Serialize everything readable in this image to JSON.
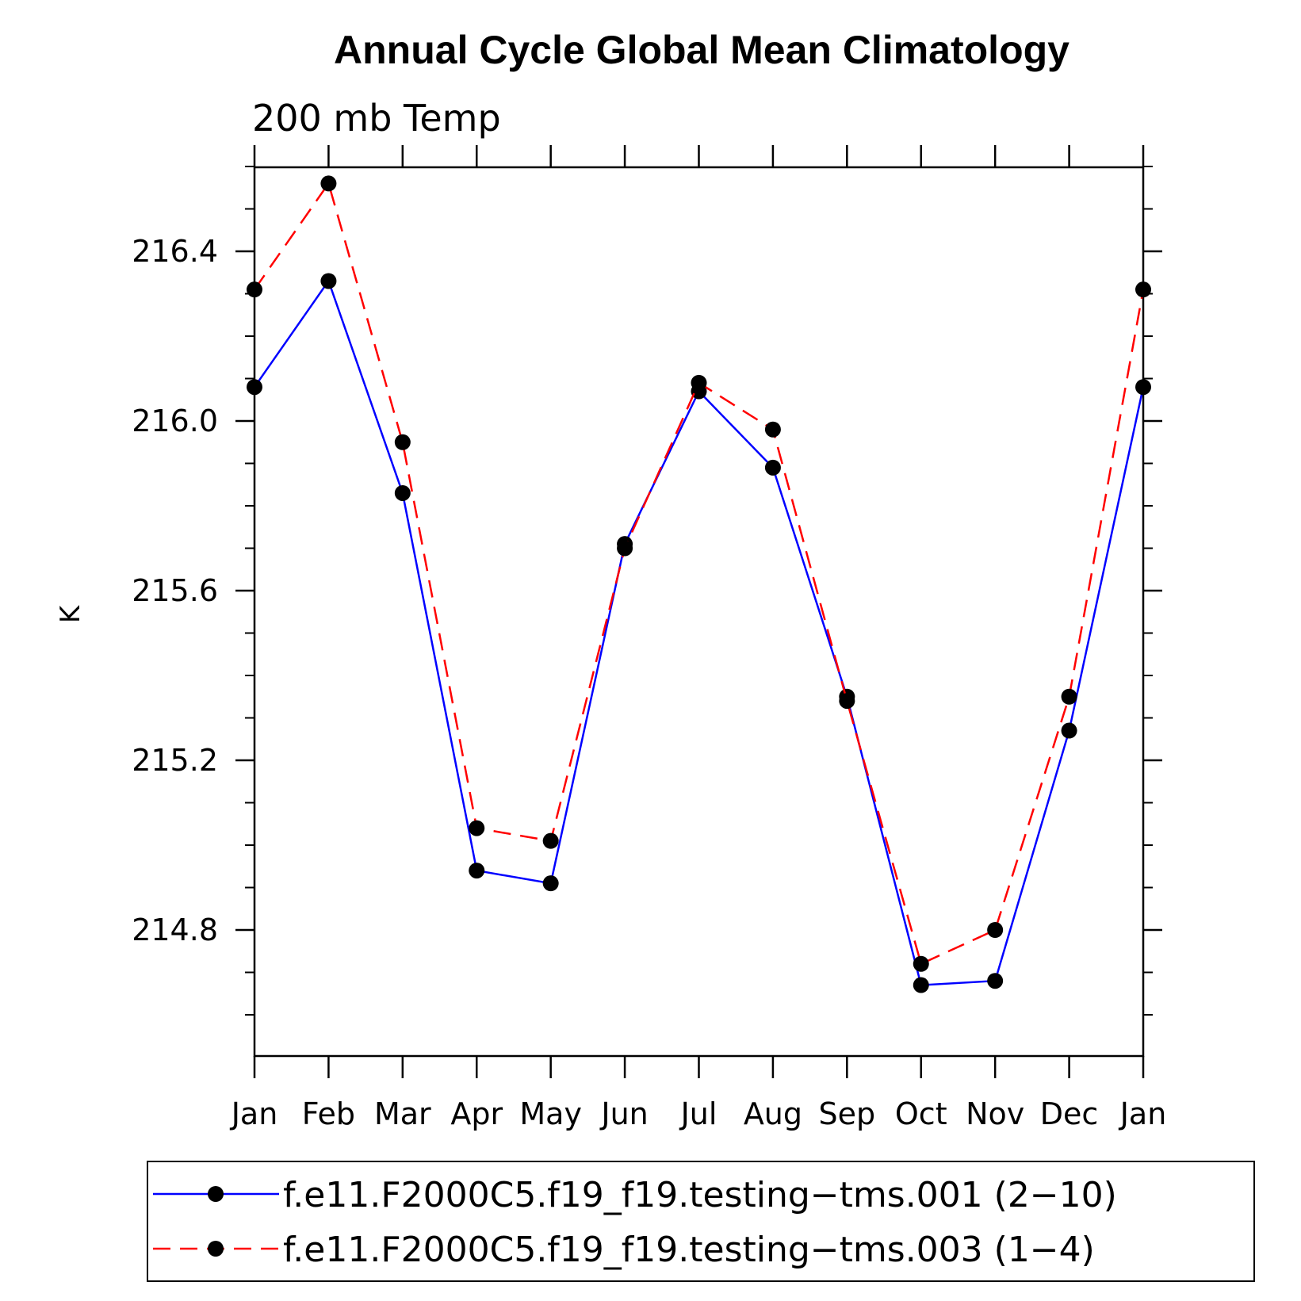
{
  "chart_data": {
    "type": "line",
    "title": "Annual Cycle Global Mean Climatology",
    "subtitle": "200 mb Temp",
    "xlabel": "",
    "ylabel": "K",
    "categories": [
      "Jan",
      "Feb",
      "Mar",
      "Apr",
      "May",
      "Jun",
      "Jul",
      "Aug",
      "Sep",
      "Oct",
      "Nov",
      "Dec",
      "Jan"
    ],
    "yticks": [
      "214.8",
      "215.2",
      "215.6",
      "216.0",
      "216.4"
    ],
    "ylim": [
      214.5,
      216.6
    ],
    "grid": false,
    "legend_position": "bottom",
    "series": [
      {
        "name": "f.e11.F2000C5.f19_f19.testing−tms.001 (2−10)",
        "color": "#0000ff",
        "dash": "solid",
        "values": [
          216.08,
          216.33,
          215.83,
          214.94,
          214.91,
          215.71,
          216.07,
          215.89,
          215.35,
          214.67,
          214.68,
          215.27,
          216.08
        ]
      },
      {
        "name": "f.e11.F2000C5.f19_f19.testing−tms.003 (1−4)",
        "color": "#ff0000",
        "dash": "dashed",
        "values": [
          216.31,
          216.56,
          215.95,
          215.04,
          215.01,
          215.7,
          216.09,
          215.98,
          215.34,
          214.72,
          214.8,
          215.35,
          216.31
        ]
      }
    ]
  }
}
